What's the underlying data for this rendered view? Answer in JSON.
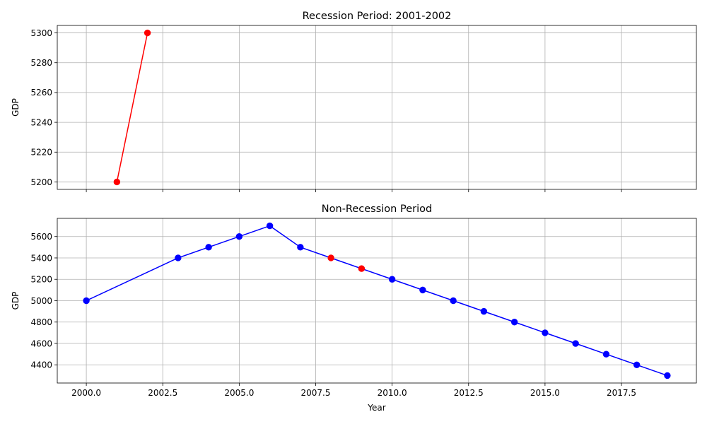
{
  "chart_data": [
    {
      "type": "line",
      "title": "Recession Period: 2001-2002",
      "xlabel": "",
      "ylabel": "GDP",
      "xlim": [
        1999.05,
        2019.95
      ],
      "ylim": [
        5195,
        5305
      ],
      "xticks": [
        2000.0,
        2002.5,
        2005.0,
        2007.5,
        2010.0,
        2012.5,
        2015.0,
        2017.5
      ],
      "xtick_labels_shown": false,
      "yticks": [
        5200,
        5220,
        5240,
        5260,
        5280,
        5300
      ],
      "grid": true,
      "series": [
        {
          "line_color": "#ff0000",
          "points": [
            {
              "x": 2001,
              "y": 5200,
              "color": "#ff0000"
            },
            {
              "x": 2002,
              "y": 5300,
              "color": "#ff0000"
            }
          ]
        }
      ]
    },
    {
      "type": "line",
      "title": "Non-Recession Period",
      "xlabel": "Year",
      "ylabel": "GDP",
      "xlim": [
        1999.05,
        2019.95
      ],
      "ylim": [
        4230,
        5770
      ],
      "xticks": [
        2000.0,
        2002.5,
        2005.0,
        2007.5,
        2010.0,
        2012.5,
        2015.0,
        2017.5
      ],
      "xtick_labels_shown": true,
      "yticks": [
        4400,
        4600,
        4800,
        5000,
        5200,
        5400,
        5600
      ],
      "grid": true,
      "series": [
        {
          "line_color": "#0000ff",
          "points": [
            {
              "x": 2000,
              "y": 5000,
              "color": "#0000ff"
            },
            {
              "x": 2003,
              "y": 5400,
              "color": "#0000ff"
            },
            {
              "x": 2004,
              "y": 5500,
              "color": "#0000ff"
            },
            {
              "x": 2005,
              "y": 5600,
              "color": "#0000ff"
            },
            {
              "x": 2006,
              "y": 5700,
              "color": "#0000ff"
            },
            {
              "x": 2007,
              "y": 5500,
              "color": "#0000ff"
            },
            {
              "x": 2008,
              "y": 5400,
              "color": "#ff0000"
            },
            {
              "x": 2009,
              "y": 5300,
              "color": "#ff0000"
            },
            {
              "x": 2010,
              "y": 5200,
              "color": "#0000ff"
            },
            {
              "x": 2011,
              "y": 5100,
              "color": "#0000ff"
            },
            {
              "x": 2012,
              "y": 5000,
              "color": "#0000ff"
            },
            {
              "x": 2013,
              "y": 4900,
              "color": "#0000ff"
            },
            {
              "x": 2014,
              "y": 4800,
              "color": "#0000ff"
            },
            {
              "x": 2015,
              "y": 4700,
              "color": "#0000ff"
            },
            {
              "x": 2016,
              "y": 4600,
              "color": "#0000ff"
            },
            {
              "x": 2017,
              "y": 4500,
              "color": "#0000ff"
            },
            {
              "x": 2018,
              "y": 4400,
              "color": "#0000ff"
            },
            {
              "x": 2019,
              "y": 4300,
              "color": "#0000ff"
            }
          ]
        }
      ]
    }
  ]
}
